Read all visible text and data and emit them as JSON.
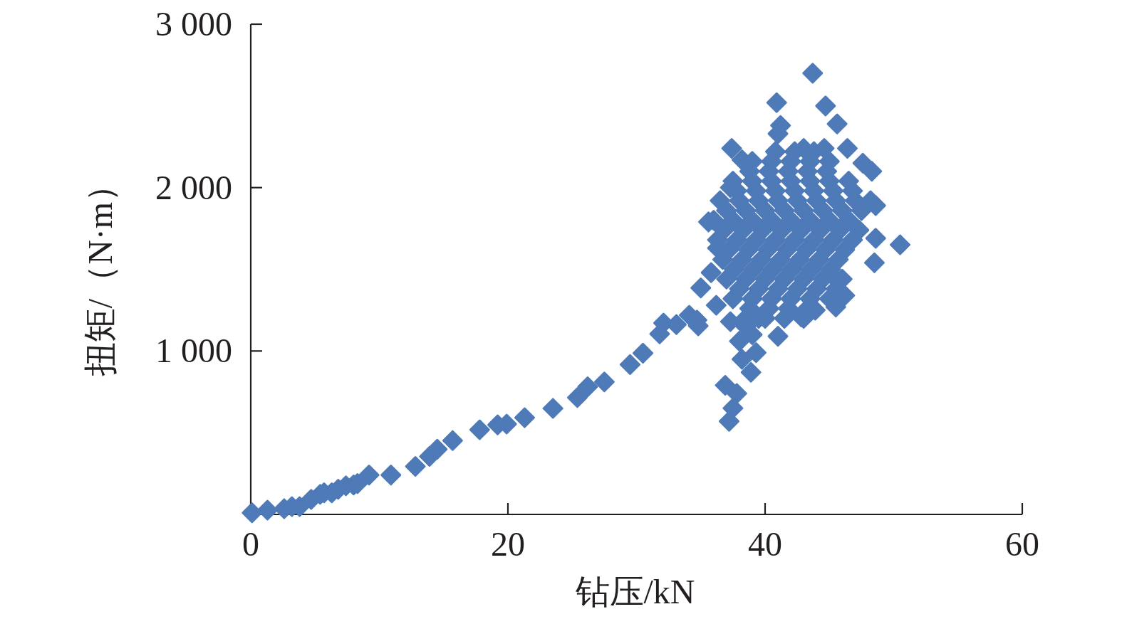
{
  "chart_data": {
    "type": "scatter",
    "xlabel": "钻压/kN",
    "ylabel": "扭矩/（N·m）",
    "color": "#4e7ab8",
    "marker": "diamond",
    "xlim": [
      0,
      60
    ],
    "ylim": [
      0,
      3000
    ],
    "xticks": [
      0,
      20,
      40,
      60
    ],
    "yticks": [
      {
        "value": 1000,
        "label": "1 000"
      },
      {
        "value": 2000,
        "label": "2 000"
      },
      {
        "value": 3000,
        "label": "3 000"
      }
    ],
    "x": [
      38.5,
      40.0,
      41.5,
      43.0,
      38.8,
      40.3,
      41.8,
      43.3,
      37.5,
      39.0,
      40.5,
      42.0,
      43.5,
      45.0,
      38.0,
      39.5,
      41.0,
      42.5,
      44.0,
      45.5,
      37.0,
      38.5,
      40.0,
      41.5,
      43.0,
      44.5,
      46.0,
      37.6,
      39.1,
      40.6,
      42.1,
      43.6,
      45.1,
      36.7,
      38.2,
      39.7,
      41.2,
      42.7,
      44.2,
      45.7,
      37.2,
      38.7,
      40.2,
      41.7,
      43.2,
      44.7,
      46.2,
      36.3,
      37.8,
      39.3,
      40.8,
      42.3,
      43.8,
      45.3,
      46.8,
      36.8,
      38.3,
      39.8,
      41.3,
      42.8,
      44.3,
      45.8,
      47.3,
      36.0,
      37.5,
      39.0,
      40.5,
      42.0,
      43.5,
      45.0,
      46.5,
      37.0,
      38.5,
      40.0,
      41.5,
      43.0,
      44.5,
      46.0,
      47.5,
      36.5,
      38.0,
      39.5,
      41.0,
      42.5,
      44.0,
      45.5,
      47.0,
      37.8,
      39.3,
      40.8,
      42.3,
      43.8,
      45.3,
      46.8,
      37.5,
      39.0,
      40.5,
      42.0,
      43.5,
      45.0,
      46.5,
      38.8,
      40.3,
      41.8,
      43.3,
      44.8,
      39.0,
      40.5,
      42.0,
      43.5,
      45.0,
      40.8,
      42.3,
      43.8,
      0.1,
      1.3,
      2.6,
      3.2,
      3.8,
      4.7,
      5.4,
      5.7,
      6.3,
      6.8,
      7.4,
      8.0,
      8.3,
      9.2,
      10.9,
      12.8,
      13.9,
      14.5,
      15.7,
      17.8,
      19.2,
      19.9,
      21.3,
      23.5,
      25.4,
      26.2,
      27.5,
      29.5,
      30.5,
      31.8,
      32.1,
      33.1,
      34.1,
      34.7,
      34.8,
      35.0,
      36.2,
      37.3,
      38.0,
      39.3,
      38.9,
      36.9,
      37.8,
      37.5,
      37.2,
      41.0,
      42.8,
      43.9,
      45.5,
      46.2,
      45.4,
      35.8,
      36.3,
      35.6,
      48.5,
      50.5,
      48.6,
      48.2,
      48.6,
      37.3,
      48.3,
      47.6,
      46.4,
      44.6,
      43.0,
      38.2,
      37.4,
      41.0,
      41.2,
      45.6,
      44.7,
      40.9,
      43.7,
      38.5,
      39.5,
      38.2,
      39.0
    ],
    "values": [
      1200,
      1200,
      1200,
      1200,
      1260,
      1260,
      1260,
      1260,
      1320,
      1320,
      1320,
      1320,
      1320,
      1320,
      1380,
      1380,
      1380,
      1380,
      1380,
      1380,
      1440,
      1440,
      1440,
      1440,
      1440,
      1440,
      1440,
      1500,
      1500,
      1500,
      1500,
      1500,
      1500,
      1560,
      1560,
      1560,
      1560,
      1560,
      1560,
      1560,
      1620,
      1620,
      1620,
      1620,
      1620,
      1620,
      1620,
      1680,
      1680,
      1680,
      1680,
      1680,
      1680,
      1680,
      1680,
      1740,
      1740,
      1740,
      1740,
      1740,
      1740,
      1740,
      1740,
      1800,
      1800,
      1800,
      1800,
      1800,
      1800,
      1800,
      1800,
      1860,
      1860,
      1860,
      1860,
      1860,
      1860,
      1860,
      1860,
      1920,
      1920,
      1920,
      1920,
      1920,
      1920,
      1920,
      1920,
      1980,
      1980,
      1980,
      1980,
      1980,
      1980,
      1980,
      2040,
      2040,
      2040,
      2040,
      2040,
      2040,
      2040,
      2100,
      2100,
      2100,
      2100,
      2100,
      2160,
      2160,
      2160,
      2160,
      2160,
      2220,
      2220,
      2220,
      10,
      26,
      35,
      48,
      48,
      92,
      123,
      132,
      132,
      154,
      175,
      180,
      189,
      241,
      241,
      294,
      355,
      399,
      452,
      518,
      548,
      553,
      592,
      649,
      715,
      781,
      811,
      917,
      987,
      1105,
      1171,
      1162,
      1219,
      1189,
      1154,
      1386,
      1280,
      1180,
      1060,
      990,
      870,
      790,
      740,
      650,
      570,
      1090,
      1210,
      1250,
      1270,
      1340,
      1450,
      1480,
      1630,
      1790,
      1540,
      1650,
      1690,
      1920,
      1890,
      2000,
      2100,
      2150,
      2240,
      2240,
      2240,
      2170,
      2240,
      2330,
      2380,
      2390,
      2500,
      2520,
      2700,
      1150,
      1200,
      950,
      1100
    ]
  }
}
